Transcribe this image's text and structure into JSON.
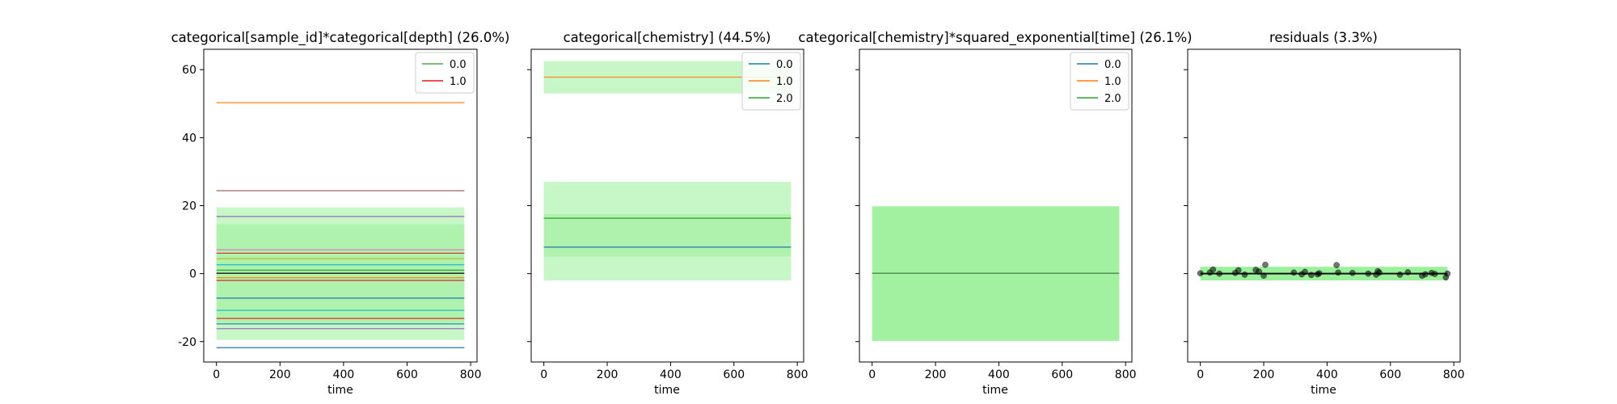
{
  "chart_data": [
    {
      "type": "line",
      "title": "categorical[sample_id]*categorical[depth] (26.0%)",
      "xlabel": "time",
      "ylabel": "",
      "xlim": [
        -40,
        820
      ],
      "ylim": [
        -26,
        66
      ],
      "xticks": [
        0,
        200,
        400,
        600,
        800
      ],
      "yticks": [
        -20,
        0,
        20,
        40,
        60
      ],
      "show_yticklabels": true,
      "x_range": [
        0,
        780
      ],
      "legend": {
        "placement": "top-right",
        "entries": [
          {
            "label": "0.0",
            "color": "#4daf4a"
          },
          {
            "label": "1.0",
            "color": "#e41a1c"
          }
        ]
      },
      "bands": [
        {
          "lower": -19.5,
          "upper": 19.5,
          "color": "#90ee90",
          "opacity": 0.5
        },
        {
          "lower": -14.5,
          "upper": 14.5,
          "color": "#90ee90",
          "opacity": 0.45
        }
      ],
      "series": [
        {
          "values": [
            50.3,
            50.3
          ],
          "color": "#ff7f0e"
        },
        {
          "values": [
            24.4,
            24.4
          ],
          "color": "#8c564b"
        },
        {
          "values": [
            16.8,
            16.8
          ],
          "color": "#9467bd"
        },
        {
          "values": [
            7.0,
            7.0
          ],
          "color": "#e377c2"
        },
        {
          "values": [
            6.0,
            6.0
          ],
          "color": "#d62728"
        },
        {
          "values": [
            4.4,
            4.4
          ],
          "color": "#bcbd22"
        },
        {
          "values": [
            2.6,
            2.6
          ],
          "color": "#17becf"
        },
        {
          "values": [
            1.0,
            1.0
          ],
          "color": "#2ca02c"
        },
        {
          "values": [
            0.1,
            0.1
          ],
          "color": "#000000"
        },
        {
          "values": [
            -1.2,
            -1.2
          ],
          "color": "#ff7f0e"
        },
        {
          "values": [
            -2.0,
            -2.0
          ],
          "color": "#d62728"
        },
        {
          "values": [
            -7.2,
            -7.2
          ],
          "color": "#1f77b4"
        },
        {
          "values": [
            -10.8,
            -10.8
          ],
          "color": "#17becf"
        },
        {
          "values": [
            -13.2,
            -13.2
          ],
          "color": "#e41a1c"
        },
        {
          "values": [
            -14.8,
            -14.8
          ],
          "color": "#1f77b4"
        },
        {
          "values": [
            -16.2,
            -16.2
          ],
          "color": "#9467bd"
        },
        {
          "values": [
            -21.8,
            -21.8
          ],
          "color": "#1f77b4"
        }
      ],
      "points": []
    },
    {
      "type": "line",
      "title": "categorical[chemistry] (44.5%)",
      "xlabel": "time",
      "ylabel": "",
      "xlim": [
        -40,
        820
      ],
      "ylim": [
        -26,
        66
      ],
      "xticks": [
        0,
        200,
        400,
        600,
        800
      ],
      "yticks": [
        -20,
        0,
        20,
        40,
        60
      ],
      "show_yticklabels": false,
      "x_range": [
        0,
        780
      ],
      "legend": {
        "placement": "top-right",
        "entries": [
          {
            "label": "0.0",
            "color": "#1f77b4"
          },
          {
            "label": "1.0",
            "color": "#ff7f0e"
          },
          {
            "label": "2.0",
            "color": "#2ca02c"
          }
        ]
      },
      "bands": [
        {
          "lower": 53.0,
          "upper": 62.5,
          "color": "#90ee90",
          "opacity": 0.5
        },
        {
          "lower": -2.0,
          "upper": 27.0,
          "color": "#90ee90",
          "opacity": 0.5
        },
        {
          "lower": 5.0,
          "upper": 17.5,
          "color": "#90ee90",
          "opacity": 0.45
        }
      ],
      "series": [
        {
          "values": [
            57.8,
            57.8
          ],
          "color": "#ff7f0e"
        },
        {
          "values": [
            16.3,
            16.3
          ],
          "color": "#2ca02c"
        },
        {
          "values": [
            7.8,
            7.8
          ],
          "color": "#1f77b4"
        }
      ],
      "points": []
    },
    {
      "type": "line",
      "title": "categorical[chemistry]*squared_exponential[time] (26.1%)",
      "xlabel": "time",
      "ylabel": "",
      "xlim": [
        -40,
        820
      ],
      "ylim": [
        -26,
        66
      ],
      "xticks": [
        0,
        200,
        400,
        600,
        800
      ],
      "yticks": [
        -20,
        0,
        20,
        40,
        60
      ],
      "show_yticklabels": false,
      "x_range": [
        0,
        780
      ],
      "legend": {
        "placement": "top-right",
        "entries": [
          {
            "label": "0.0",
            "color": "#1f77b4"
          },
          {
            "label": "1.0",
            "color": "#ff7f0e"
          },
          {
            "label": "2.0",
            "color": "#2ca02c"
          }
        ]
      },
      "bands": [
        {
          "lower": -19.8,
          "upper": 19.8,
          "color": "#90ee90",
          "opacity": 0.85
        }
      ],
      "series": [
        {
          "values": [
            0.1,
            0.1
          ],
          "color": "#4a7a4a"
        }
      ],
      "points": []
    },
    {
      "type": "scatter",
      "title": "residuals (3.3%)",
      "xlabel": "time",
      "ylabel": "",
      "xlim": [
        -40,
        820
      ],
      "ylim": [
        -26,
        66
      ],
      "xticks": [
        0,
        200,
        400,
        600,
        800
      ],
      "yticks": [
        -20,
        0,
        20,
        40,
        60
      ],
      "show_yticklabels": false,
      "x_range": [
        0,
        780
      ],
      "legend": null,
      "bands": [
        {
          "lower": -2.0,
          "upper": 2.0,
          "color": "#90ee90",
          "opacity": 0.9
        }
      ],
      "series": [
        {
          "values": [
            0.0,
            0.0
          ],
          "color": "#000000",
          "width": 2
        }
      ],
      "points": [
        {
          "x": 0,
          "y": 0.1
        },
        {
          "x": 30,
          "y": 0.3
        },
        {
          "x": 40,
          "y": 1.2
        },
        {
          "x": 60,
          "y": 0.0
        },
        {
          "x": 110,
          "y": 0.2
        },
        {
          "x": 120,
          "y": 1.0
        },
        {
          "x": 140,
          "y": -0.3
        },
        {
          "x": 175,
          "y": 1.1
        },
        {
          "x": 185,
          "y": 0.6
        },
        {
          "x": 200,
          "y": -0.6
        },
        {
          "x": 205,
          "y": 2.6
        },
        {
          "x": 295,
          "y": 0.3
        },
        {
          "x": 320,
          "y": -0.2
        },
        {
          "x": 330,
          "y": 0.5
        },
        {
          "x": 350,
          "y": -0.4
        },
        {
          "x": 370,
          "y": -0.2
        },
        {
          "x": 375,
          "y": 0.1
        },
        {
          "x": 430,
          "y": 2.5
        },
        {
          "x": 435,
          "y": 0.3
        },
        {
          "x": 480,
          "y": 0.2
        },
        {
          "x": 530,
          "y": 0.0
        },
        {
          "x": 555,
          "y": -0.3
        },
        {
          "x": 560,
          "y": 0.7
        },
        {
          "x": 565,
          "y": 0.3
        },
        {
          "x": 630,
          "y": -0.3
        },
        {
          "x": 655,
          "y": 0.4
        },
        {
          "x": 700,
          "y": -0.6
        },
        {
          "x": 710,
          "y": -0.2
        },
        {
          "x": 730,
          "y": 0.2
        },
        {
          "x": 740,
          "y": -0.1
        },
        {
          "x": 775,
          "y": -1.1
        },
        {
          "x": 780,
          "y": 0.0
        }
      ]
    }
  ]
}
